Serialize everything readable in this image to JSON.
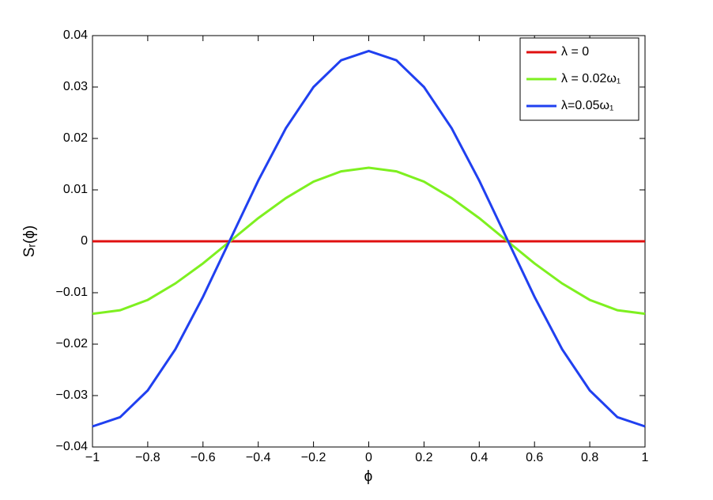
{
  "chart_data": {
    "type": "line",
    "xlabel": "ϕ",
    "ylabel": "Sᵣ(ϕ)",
    "x": [
      -1,
      -0.9,
      -0.8,
      -0.7,
      -0.6,
      -0.5,
      -0.4,
      -0.3,
      -0.2,
      -0.1,
      0,
      0.1,
      0.2,
      0.3,
      0.4,
      0.5,
      0.6,
      0.7,
      0.8,
      0.9,
      1
    ],
    "series": [
      {
        "name": "λ = 0",
        "color": "#e01010",
        "values": [
          0,
          0,
          0,
          0,
          0,
          0,
          0,
          0,
          0,
          0,
          0,
          0,
          0,
          0,
          0,
          0,
          0,
          0,
          0,
          0,
          0
        ]
      },
      {
        "name": "λ = 0.02ω₁",
        "color": "#7ef020",
        "values": [
          -0.0141,
          -0.0134,
          -0.0114,
          -0.0082,
          -0.0043,
          0.0001,
          0.0045,
          0.0084,
          0.0116,
          0.0136,
          0.0143,
          0.0136,
          0.0116,
          0.0084,
          0.0045,
          0.0001,
          -0.0043,
          -0.0082,
          -0.0114,
          -0.0134,
          -0.0141
        ]
      },
      {
        "name": "λ=0.05ω₁",
        "color": "#2040f0",
        "values": [
          -0.036,
          -0.0342,
          -0.029,
          -0.021,
          -0.0108,
          0.0005,
          0.0118,
          0.022,
          0.03,
          0.0352,
          0.037,
          0.0352,
          0.03,
          0.022,
          0.0118,
          0.0005,
          -0.0108,
          -0.021,
          -0.029,
          -0.0342,
          -0.036
        ]
      }
    ],
    "xlim": [
      -1,
      1
    ],
    "xticks": [
      {
        "value": -1,
        "label": "−1"
      },
      {
        "value": -0.8,
        "label": "−0.8"
      },
      {
        "value": -0.6,
        "label": "−0.6"
      },
      {
        "value": -0.4,
        "label": "−0.4"
      },
      {
        "value": -0.2,
        "label": "−0.2"
      },
      0,
      0.2,
      0.4,
      0.6,
      0.8,
      1
    ],
    "ylim": [
      -0.04,
      0.04
    ],
    "yticks": [
      {
        "value": -0.04,
        "label": "−0.04"
      },
      {
        "value": -0.03,
        "label": "−0.03"
      },
      {
        "value": -0.02,
        "label": "−0.02"
      },
      {
        "value": -0.01,
        "label": "−0.01"
      },
      0,
      0.01,
      0.02,
      0.03,
      0.04
    ],
    "legend": "upper right",
    "grid": false
  }
}
